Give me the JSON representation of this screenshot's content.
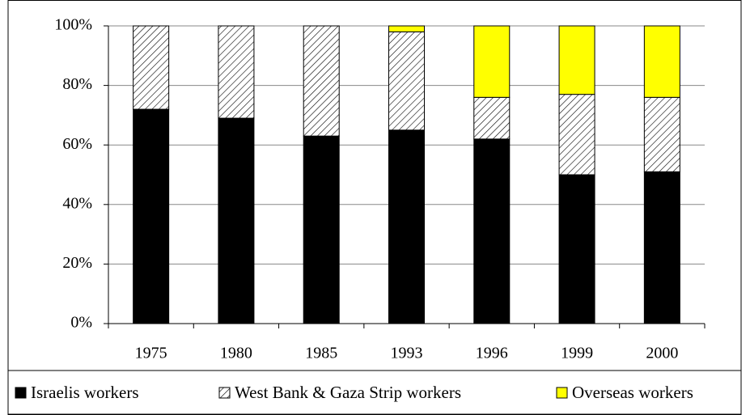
{
  "chart_data": {
    "type": "stacked-bar",
    "categories": [
      "1975",
      "1980",
      "1985",
      "1993",
      "1996",
      "1999",
      "2000"
    ],
    "series": [
      {
        "name": "Israelis workers",
        "color": "#000000",
        "pattern": "solid",
        "values": [
          72,
          69,
          63,
          65,
          62,
          50,
          51
        ]
      },
      {
        "name": "West Bank & Gaza Strip workers",
        "color": "#000000",
        "pattern": "hatch",
        "values": [
          28,
          31,
          37,
          33,
          14,
          27,
          25
        ]
      },
      {
        "name": "Overseas workers",
        "color": "#ffff00",
        "pattern": "solid",
        "values": [
          0,
          0,
          0,
          2,
          24,
          23,
          24
        ]
      }
    ],
    "ylim": [
      0,
      100
    ],
    "yticks": [
      {
        "value": 0,
        "label": "0%"
      },
      {
        "value": 20,
        "label": "20%"
      },
      {
        "value": 40,
        "label": "40%"
      },
      {
        "value": 60,
        "label": "60%"
      },
      {
        "value": 80,
        "label": "80%"
      },
      {
        "value": 100,
        "label": "100%"
      }
    ],
    "grid": true,
    "legend": "bottom"
  }
}
